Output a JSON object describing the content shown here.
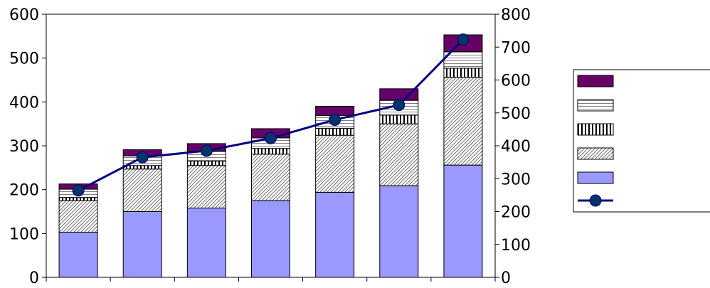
{
  "chart_data": {
    "type": "bar",
    "stacked": true,
    "title": "",
    "xlabel": "",
    "ylabel": "",
    "ylim": [
      0,
      600
    ],
    "y2lim": [
      0,
      800
    ],
    "yticks": [
      "0",
      "100",
      "200",
      "300",
      "400",
      "500",
      "600"
    ],
    "y2ticks": [
      "0",
      "100",
      "200",
      "300",
      "400",
      "500",
      "600",
      "700",
      "800"
    ],
    "categories": [
      "",
      "",
      "",
      "",
      "",
      "",
      ""
    ],
    "series": [
      {
        "values": [
          103,
          150,
          158,
          175,
          194,
          209,
          256
        ],
        "color": "#9999ff",
        "pattern": "solid"
      },
      {
        "values": [
          72,
          97,
          97,
          106,
          130,
          141,
          200
        ],
        "color": "#ffffff",
        "pattern": "diagonal-hatch"
      },
      {
        "values": [
          7,
          8,
          10,
          13,
          16,
          20,
          21
        ],
        "color": "#ffffff",
        "pattern": "vertical-stripes"
      },
      {
        "values": [
          19,
          22,
          23,
          24,
          29,
          34,
          38
        ],
        "color": "#ffffff",
        "pattern": "horizontal-stripes"
      },
      {
        "values": [
          12,
          14,
          17,
          21,
          21,
          26,
          38
        ],
        "color": "#660066",
        "pattern": "solid"
      }
    ],
    "line_series": {
      "axis": "secondary",
      "values": [
        264,
        365,
        385,
        423,
        479,
        524,
        723
      ],
      "color": "#000080",
      "marker_color": "#003366"
    },
    "legend_placement": "right"
  }
}
